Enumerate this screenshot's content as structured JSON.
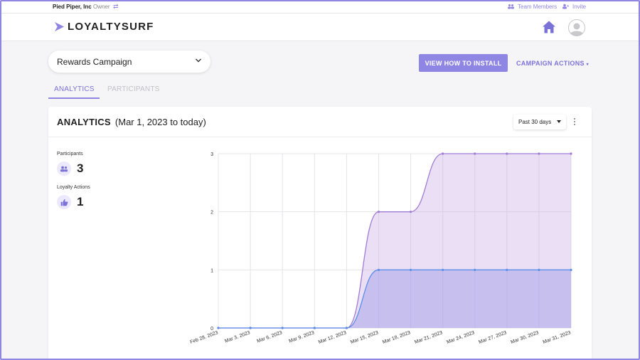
{
  "topbar": {
    "org_name": "Pied Piper, Inc",
    "role": "Owner",
    "team_members_label": "Team Members",
    "invite_label": "Invite"
  },
  "header": {
    "logo_text": "LOYALTYSURF",
    "home_icon": "home-icon",
    "avatar_icon": "user-avatar"
  },
  "campaign": {
    "selected": "Rewards Campaign",
    "install_button": "VIEW HOW TO INSTALL",
    "actions_label": "CAMPAIGN ACTIONS"
  },
  "tabs": [
    {
      "label": "ANALYTICS",
      "active": true
    },
    {
      "label": "PARTICIPANTS",
      "active": false
    }
  ],
  "analytics": {
    "title": "ANALYTICS",
    "date_range": "(Mar 1, 2023 to today)",
    "range_select": "Past 30 days",
    "stats": [
      {
        "label": "Participants",
        "value": "3",
        "icon": "people-icon"
      },
      {
        "label": "Loyalty Actions",
        "value": "1",
        "icon": "thumbs-up-icon"
      }
    ]
  },
  "colors": {
    "accent": "#8f86e4",
    "participants_series": "#a07cd6",
    "actions_series": "#5b8ee8"
  },
  "chart_data": {
    "type": "area",
    "x": [
      "Feb 28, 2023",
      "Mar 3, 2023",
      "Mar 6, 2023",
      "Mar 9, 2023",
      "Mar 12, 2023",
      "Mar 15, 2023",
      "Mar 18, 2023",
      "Mar 21, 2023",
      "Mar 24, 2023",
      "Mar 27, 2023",
      "Mar 30, 2023",
      "Mar 31, 2023"
    ],
    "series": [
      {
        "values": [
          0,
          0,
          0,
          0,
          0,
          2,
          2,
          3,
          3,
          3,
          3,
          3
        ]
      },
      {
        "values": [
          0,
          0,
          0,
          0,
          0,
          1,
          1,
          1,
          1,
          1,
          1,
          1
        ]
      }
    ],
    "y_ticks": [
      "0",
      "1",
      "2",
      "3"
    ],
    "ylim": [
      0,
      3
    ],
    "grid": true,
    "title": "",
    "xlabel": "",
    "ylabel": ""
  }
}
